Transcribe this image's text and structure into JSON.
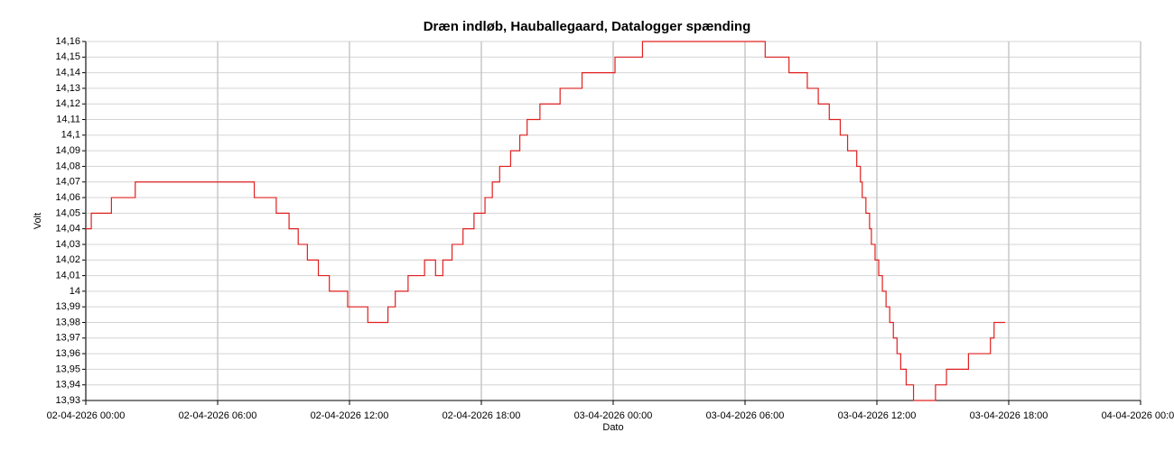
{
  "chart_data": {
    "type": "line",
    "drawstyle": "steps-post",
    "title": "Dræn indløb, Hauballegaard, Datalogger spænding",
    "xlabel": "Dato",
    "ylabel": "Volt",
    "grid": true,
    "xlim": [
      "02-04-2026 00:00",
      "04-04-2026 00:00"
    ],
    "xticks": [
      "02-04-2026 00:00",
      "02-04-2026 06:00",
      "02-04-2026 12:00",
      "02-04-2026 18:00",
      "03-04-2026 00:00",
      "03-04-2026 06:00",
      "03-04-2026 12:00",
      "03-04-2026 18:00",
      "04-04-2026 00:00"
    ],
    "ylim": [
      13.93,
      14.16
    ],
    "yticks": [
      {
        "value": 13.93,
        "label": "13,93"
      },
      {
        "value": 13.94,
        "label": "13,94"
      },
      {
        "value": 13.95,
        "label": "13,95"
      },
      {
        "value": 13.96,
        "label": "13,96"
      },
      {
        "value": 13.97,
        "label": "13,97"
      },
      {
        "value": 13.98,
        "label": "13,98"
      },
      {
        "value": 13.99,
        "label": "13,99"
      },
      14,
      {
        "value": 14.01,
        "label": "14,01"
      },
      {
        "value": 14.02,
        "label": "14,02"
      },
      {
        "value": 14.03,
        "label": "14,03"
      },
      {
        "value": 14.04,
        "label": "14,04"
      },
      {
        "value": 14.05,
        "label": "14,05"
      },
      {
        "value": 14.06,
        "label": "14,06"
      },
      {
        "value": 14.07,
        "label": "14,07"
      },
      {
        "value": 14.08,
        "label": "14,08"
      },
      {
        "value": 14.09,
        "label": "14,09"
      },
      {
        "value": 14.1,
        "label": "14,1"
      },
      {
        "value": 14.11,
        "label": "14,11"
      },
      {
        "value": 14.12,
        "label": "14,12"
      },
      {
        "value": 14.13,
        "label": "14,13"
      },
      {
        "value": 14.14,
        "label": "14,14"
      },
      {
        "value": 14.15,
        "label": "14,15"
      },
      {
        "value": 14.16,
        "label": "14,16"
      }
    ],
    "x": [
      "02-04-2026 00:00",
      "02-04-2026 00:15",
      "02-04-2026 01:10",
      "02-04-2026 02:15",
      "02-04-2026 07:40",
      "02-04-2026 08:40",
      "02-04-2026 09:15",
      "02-04-2026 09:40",
      "02-04-2026 10:05",
      "02-04-2026 10:35",
      "02-04-2026 11:05",
      "02-04-2026 11:55",
      "02-04-2026 12:50",
      "02-04-2026 13:45",
      "02-04-2026 14:05",
      "02-04-2026 14:40",
      "02-04-2026 15:25",
      "02-04-2026 15:55",
      "02-04-2026 16:15",
      "02-04-2026 16:40",
      "02-04-2026 17:10",
      "02-04-2026 17:40",
      "02-04-2026 18:10",
      "02-04-2026 18:30",
      "02-04-2026 18:50",
      "02-04-2026 19:20",
      "02-04-2026 19:45",
      "02-04-2026 20:05",
      "02-04-2026 20:40",
      "02-04-2026 21:35",
      "02-04-2026 22:35",
      "03-04-2026 00:05",
      "03-04-2026 01:20",
      "03-04-2026 06:55",
      "03-04-2026 08:00",
      "03-04-2026 08:50",
      "03-04-2026 09:20",
      "03-04-2026 09:50",
      "03-04-2026 10:20",
      "03-04-2026 10:40",
      "03-04-2026 11:05",
      "03-04-2026 11:15",
      "03-04-2026 11:20",
      "03-04-2026 11:30",
      "03-04-2026 11:40",
      "03-04-2026 11:45",
      "03-04-2026 11:55",
      "03-04-2026 12:05",
      "03-04-2026 12:15",
      "03-04-2026 12:25",
      "03-04-2026 12:35",
      "03-04-2026 12:45",
      "03-04-2026 12:55",
      "03-04-2026 13:05",
      "03-04-2026 13:20",
      "03-04-2026 13:40",
      "03-04-2026 14:40",
      "03-04-2026 15:10",
      "03-04-2026 16:10",
      "03-04-2026 17:10",
      "03-04-2026 17:20",
      "03-04-2026 17:50"
    ],
    "series": [
      {
        "color": "#e02020",
        "values": [
          14.04,
          14.05,
          14.06,
          14.07,
          14.06,
          14.05,
          14.04,
          14.03,
          14.02,
          14.01,
          14.0,
          13.99,
          13.98,
          13.99,
          14.0,
          14.01,
          14.02,
          14.01,
          14.02,
          14.03,
          14.04,
          14.05,
          14.06,
          14.07,
          14.08,
          14.09,
          14.1,
          14.11,
          14.12,
          14.13,
          14.14,
          14.15,
          14.16,
          14.15,
          14.14,
          14.13,
          14.12,
          14.11,
          14.1,
          14.09,
          14.08,
          14.07,
          14.06,
          14.05,
          14.04,
          14.03,
          14.02,
          14.01,
          14.0,
          13.99,
          13.98,
          13.97,
          13.96,
          13.95,
          13.94,
          13.93,
          13.94,
          13.95,
          13.96,
          13.97,
          13.98,
          13.98
        ]
      }
    ]
  }
}
